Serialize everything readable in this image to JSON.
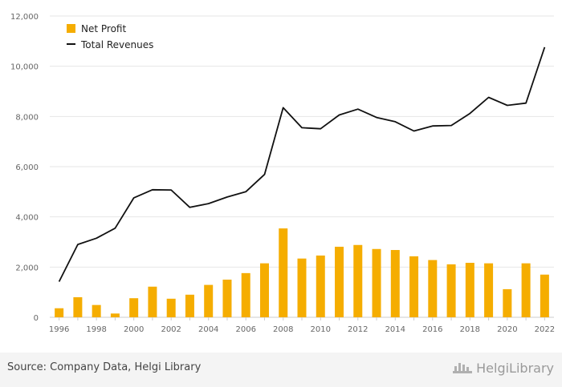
{
  "chart_data": {
    "type": "bar",
    "title": "",
    "xlabel": "",
    "ylabel": "",
    "ylim": [
      0,
      12000
    ],
    "yticks": [
      "0",
      "2,000",
      "4,000",
      "6,000",
      "8,000",
      "10,000",
      "12,000"
    ],
    "ytick_values": [
      0,
      2000,
      4000,
      6000,
      8000,
      10000,
      12000
    ],
    "categories": [
      "1996",
      "1997",
      "1998",
      "1999",
      "2000",
      "2001",
      "2002",
      "2003",
      "2004",
      "2005",
      "2006",
      "2007",
      "2008",
      "2009",
      "2010",
      "2011",
      "2012",
      "2013",
      "2014",
      "2015",
      "2016",
      "2017",
      "2018",
      "2019",
      "2020",
      "2021",
      "2022"
    ],
    "xtick_labels": [
      "1996",
      "1998",
      "2000",
      "2002",
      "2004",
      "2006",
      "2008",
      "2010",
      "2012",
      "2014",
      "2016",
      "2018",
      "2020",
      "2022"
    ],
    "grid": true,
    "legend_position": "top-left",
    "series": [
      {
        "name": "Net Profit",
        "type": "bar",
        "color": "#f5ad00",
        "values": [
          360,
          800,
          490,
          150,
          760,
          1220,
          740,
          900,
          1290,
          1500,
          1760,
          2150,
          3540,
          2340,
          2460,
          2810,
          2880,
          2720,
          2680,
          2430,
          2280,
          2110,
          2170,
          2150,
          1120,
          2150,
          1700
        ]
      },
      {
        "name": "Total Revenues",
        "type": "line",
        "color": "#111111",
        "values": [
          1420,
          2900,
          3150,
          3550,
          4760,
          5080,
          5070,
          4380,
          4530,
          4790,
          5000,
          5690,
          8350,
          7550,
          7510,
          8060,
          8290,
          7960,
          7790,
          7420,
          7620,
          7640,
          8120,
          8760,
          8440,
          8530,
          10760
        ]
      }
    ]
  },
  "footer": {
    "source": "Source: Company Data, Helgi Library",
    "brand": "HelgiLibrary",
    "brand_icon": "helgi-library-logo-icon"
  }
}
